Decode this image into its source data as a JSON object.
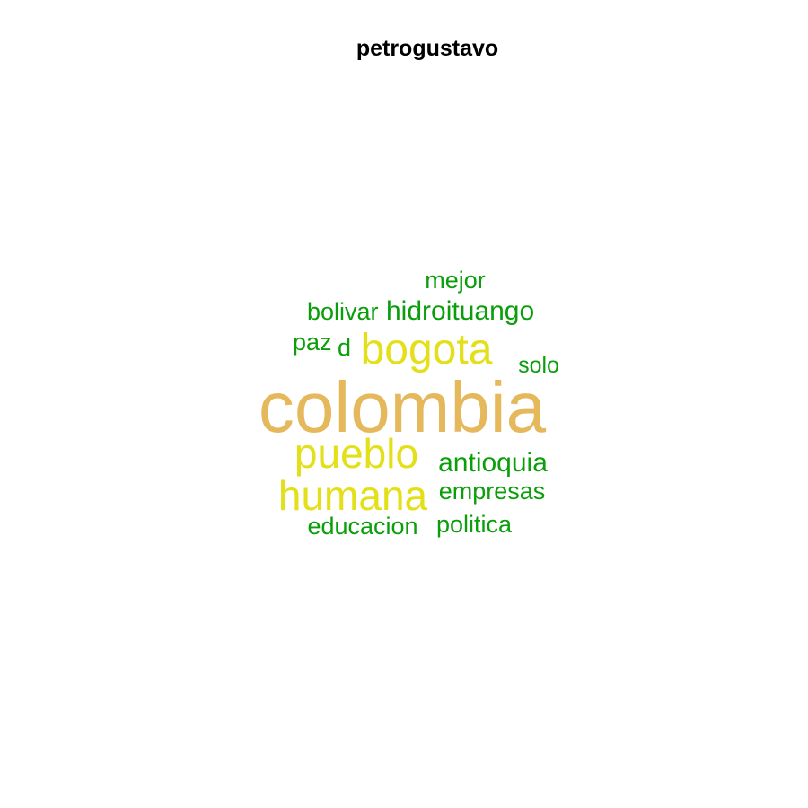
{
  "chart_data": {
    "type": "wordcloud",
    "title": "petrogustavo",
    "words": [
      {
        "text": "colombia",
        "color": "#E6B85C"
      },
      {
        "text": "bogota",
        "color": "#E3E01A"
      },
      {
        "text": "pueblo",
        "color": "#E3E01A"
      },
      {
        "text": "humana",
        "color": "#E3E01A"
      },
      {
        "text": "mejor",
        "color": "#0A9E0A"
      },
      {
        "text": "bolivar",
        "color": "#0A9E0A"
      },
      {
        "text": "hidroituango",
        "color": "#0A9E0A"
      },
      {
        "text": "paz",
        "color": "#0A9E0A"
      },
      {
        "text": "d",
        "color": "#0A9E0A"
      },
      {
        "text": "solo",
        "color": "#0A9E0A"
      },
      {
        "text": "antioquia",
        "color": "#0A9E0A"
      },
      {
        "text": "empresas",
        "color": "#0A9E0A"
      },
      {
        "text": "educacion",
        "color": "#0A9E0A"
      },
      {
        "text": "politica",
        "color": "#0A9E0A"
      }
    ]
  }
}
